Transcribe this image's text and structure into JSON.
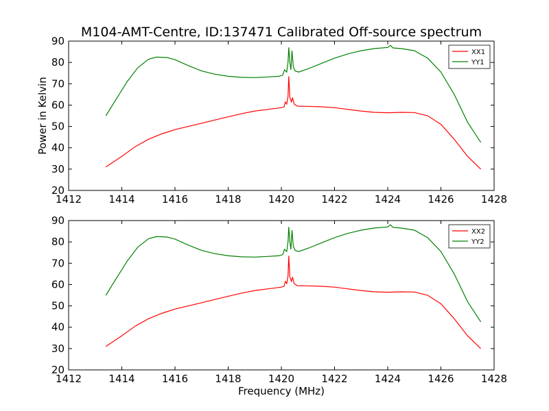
{
  "figure": {
    "title": "M104-AMT-Centre, ID:137471 Calibrated Off-source spectrum",
    "xlabel": "Frequency (MHz)",
    "ylabel": "Power in Kelvin"
  },
  "chart_data": [
    {
      "type": "line",
      "xlim": [
        1412,
        1428
      ],
      "ylim": [
        20,
        90
      ],
      "xticks": [
        "1412",
        "1414",
        "1416",
        "1418",
        "1420",
        "1422",
        "1424",
        "1426",
        "1428"
      ],
      "yticks": [
        "20",
        "30",
        "40",
        "50",
        "60",
        "70",
        "80",
        "90"
      ],
      "legend_position": "top-right",
      "grid": false,
      "series": [
        {
          "name": "XX1",
          "color": "#ff0000",
          "points": [
            [
              1413.4,
              31
            ],
            [
              1414,
              36
            ],
            [
              1414.5,
              40.5
            ],
            [
              1415,
              44
            ],
            [
              1415.5,
              46.5
            ],
            [
              1416,
              48.5
            ],
            [
              1416.5,
              50
            ],
            [
              1417,
              51.5
            ],
            [
              1417.5,
              53
            ],
            [
              1418,
              54.5
            ],
            [
              1418.5,
              56
            ],
            [
              1419,
              57.2
            ],
            [
              1419.5,
              58
            ],
            [
              1420,
              58.8
            ],
            [
              1420.1,
              59.2
            ],
            [
              1420.15,
              61.5
            ],
            [
              1420.2,
              60.5
            ],
            [
              1420.25,
              64
            ],
            [
              1420.28,
              73.5
            ],
            [
              1420.32,
              63.5
            ],
            [
              1420.38,
              61.5
            ],
            [
              1420.42,
              63.5
            ],
            [
              1420.48,
              60.5
            ],
            [
              1420.6,
              59.5
            ],
            [
              1421,
              59.4
            ],
            [
              1421.5,
              59.2
            ],
            [
              1422,
              58.8
            ],
            [
              1422.5,
              58
            ],
            [
              1423,
              57.2
            ],
            [
              1423.5,
              56.6
            ],
            [
              1424,
              56.4
            ],
            [
              1424.5,
              56.6
            ],
            [
              1425,
              56.5
            ],
            [
              1425.5,
              55
            ],
            [
              1426,
              51
            ],
            [
              1426.5,
              44
            ],
            [
              1427,
              36
            ],
            [
              1427.5,
              30
            ]
          ]
        },
        {
          "name": "YY1",
          "color": "#008000",
          "points": [
            [
              1413.4,
              55
            ],
            [
              1413.8,
              63
            ],
            [
              1414.2,
              71
            ],
            [
              1414.6,
              77.5
            ],
            [
              1415,
              81.5
            ],
            [
              1415.3,
              82.5
            ],
            [
              1415.7,
              82.3
            ],
            [
              1416,
              81.3
            ],
            [
              1416.5,
              78.5
            ],
            [
              1417,
              76
            ],
            [
              1417.5,
              74.5
            ],
            [
              1418,
              73.5
            ],
            [
              1418.5,
              73
            ],
            [
              1419,
              72.9
            ],
            [
              1419.5,
              73.2
            ],
            [
              1419.9,
              73.5
            ],
            [
              1420.05,
              74
            ],
            [
              1420.12,
              76.5
            ],
            [
              1420.2,
              75.5
            ],
            [
              1420.25,
              80
            ],
            [
              1420.28,
              87
            ],
            [
              1420.32,
              80
            ],
            [
              1420.36,
              76.5
            ],
            [
              1420.4,
              85.5
            ],
            [
              1420.45,
              78
            ],
            [
              1420.52,
              76
            ],
            [
              1420.65,
              75.5
            ],
            [
              1421,
              77
            ],
            [
              1421.5,
              79.5
            ],
            [
              1422,
              82
            ],
            [
              1422.5,
              84
            ],
            [
              1423,
              85.5
            ],
            [
              1423.5,
              86.5
            ],
            [
              1424,
              87
            ],
            [
              1424.1,
              88
            ],
            [
              1424.2,
              86.8
            ],
            [
              1424.5,
              86.5
            ],
            [
              1425,
              85.5
            ],
            [
              1425.5,
              82
            ],
            [
              1426,
              75.5
            ],
            [
              1426.5,
              65
            ],
            [
              1427,
              52
            ],
            [
              1427.5,
              42.5
            ]
          ]
        }
      ]
    },
    {
      "type": "line",
      "xlim": [
        1412,
        1428
      ],
      "ylim": [
        20,
        90
      ],
      "xticks": [
        "1412",
        "1414",
        "1416",
        "1418",
        "1420",
        "1422",
        "1424",
        "1426",
        "1428"
      ],
      "yticks": [
        "20",
        "30",
        "40",
        "50",
        "60",
        "70",
        "80",
        "90"
      ],
      "legend_position": "top-right",
      "grid": false,
      "series": [
        {
          "name": "XX2",
          "color": "#ff0000",
          "points": [
            [
              1413.4,
              31
            ],
            [
              1414,
              36
            ],
            [
              1414.5,
              40.5
            ],
            [
              1415,
              44
            ],
            [
              1415.5,
              46.5
            ],
            [
              1416,
              48.5
            ],
            [
              1416.5,
              50
            ],
            [
              1417,
              51.5
            ],
            [
              1417.5,
              53
            ],
            [
              1418,
              54.5
            ],
            [
              1418.5,
              56
            ],
            [
              1419,
              57.2
            ],
            [
              1419.5,
              58
            ],
            [
              1420,
              58.8
            ],
            [
              1420.1,
              59.2
            ],
            [
              1420.15,
              61.5
            ],
            [
              1420.2,
              60.5
            ],
            [
              1420.25,
              64
            ],
            [
              1420.28,
              73.5
            ],
            [
              1420.32,
              63.5
            ],
            [
              1420.38,
              61.5
            ],
            [
              1420.42,
              63.5
            ],
            [
              1420.48,
              60.5
            ],
            [
              1420.6,
              59.5
            ],
            [
              1421,
              59.4
            ],
            [
              1421.5,
              59.2
            ],
            [
              1422,
              58.8
            ],
            [
              1422.5,
              58
            ],
            [
              1423,
              57.2
            ],
            [
              1423.5,
              56.6
            ],
            [
              1424,
              56.4
            ],
            [
              1424.5,
              56.6
            ],
            [
              1425,
              56.5
            ],
            [
              1425.5,
              55
            ],
            [
              1426,
              51
            ],
            [
              1426.5,
              44
            ],
            [
              1427,
              36
            ],
            [
              1427.5,
              30
            ]
          ]
        },
        {
          "name": "YY2",
          "color": "#008000",
          "points": [
            [
              1413.4,
              55
            ],
            [
              1413.8,
              63
            ],
            [
              1414.2,
              71
            ],
            [
              1414.6,
              77.5
            ],
            [
              1415,
              81.5
            ],
            [
              1415.3,
              82.5
            ],
            [
              1415.7,
              82.3
            ],
            [
              1416,
              81.3
            ],
            [
              1416.5,
              78.5
            ],
            [
              1417,
              76
            ],
            [
              1417.5,
              74.5
            ],
            [
              1418,
              73.5
            ],
            [
              1418.5,
              73
            ],
            [
              1419,
              72.9
            ],
            [
              1419.5,
              73.2
            ],
            [
              1419.9,
              73.5
            ],
            [
              1420.05,
              74
            ],
            [
              1420.12,
              76.5
            ],
            [
              1420.2,
              75.5
            ],
            [
              1420.25,
              80
            ],
            [
              1420.28,
              87
            ],
            [
              1420.32,
              80
            ],
            [
              1420.36,
              76.5
            ],
            [
              1420.4,
              85.5
            ],
            [
              1420.45,
              78
            ],
            [
              1420.52,
              76
            ],
            [
              1420.65,
              75.5
            ],
            [
              1421,
              77
            ],
            [
              1421.5,
              79.5
            ],
            [
              1422,
              82
            ],
            [
              1422.5,
              84
            ],
            [
              1423,
              85.5
            ],
            [
              1423.5,
              86.5
            ],
            [
              1424,
              87
            ],
            [
              1424.1,
              88
            ],
            [
              1424.2,
              86.8
            ],
            [
              1424.5,
              86.5
            ],
            [
              1425,
              85.5
            ],
            [
              1425.5,
              82
            ],
            [
              1426,
              75.5
            ],
            [
              1426.5,
              65
            ],
            [
              1427,
              52
            ],
            [
              1427.5,
              42.5
            ]
          ]
        }
      ]
    }
  ]
}
